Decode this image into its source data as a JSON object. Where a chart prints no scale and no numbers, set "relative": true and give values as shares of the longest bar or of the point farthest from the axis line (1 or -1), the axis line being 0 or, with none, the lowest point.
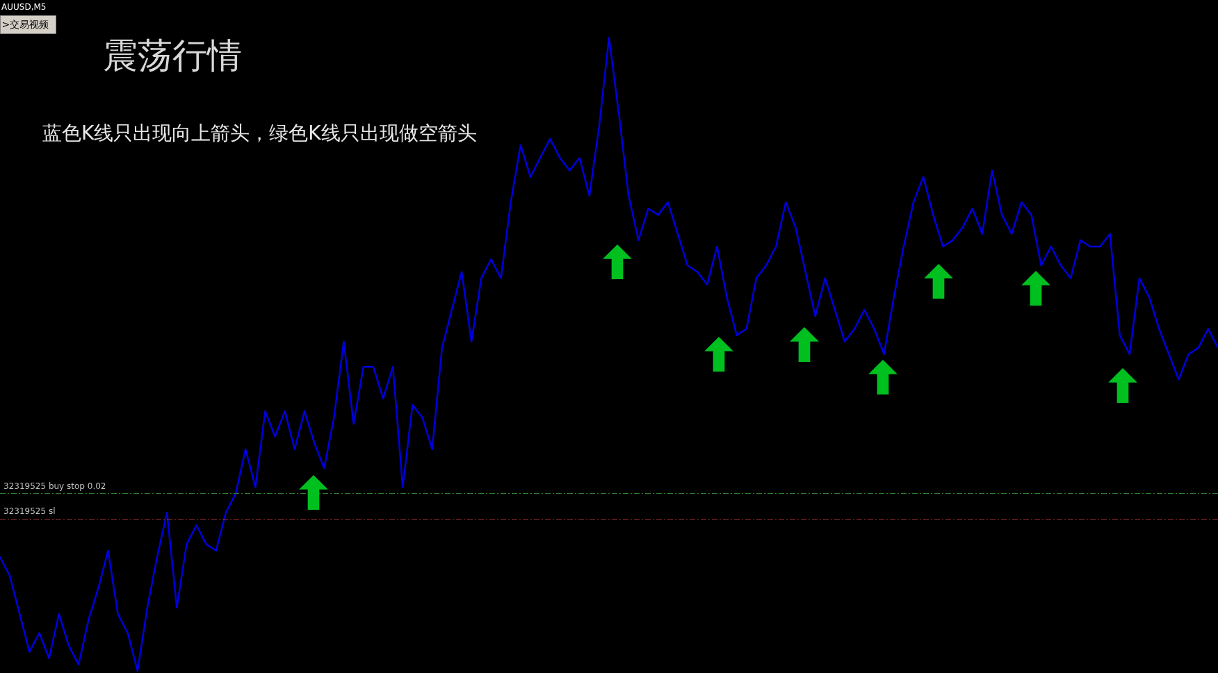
{
  "chart_data": {
    "type": "line",
    "relative": true,
    "title": "震荡行情",
    "subtitle": "蓝色K线只出现向上箭头，绿色K线只出现做空箭头",
    "annotations": [
      "AUUSD,M5",
      ">交易视频"
    ],
    "categories": [
      null,
      null,
      null,
      null,
      null,
      null,
      null,
      null,
      null,
      null,
      null,
      null,
      null,
      null,
      null,
      null,
      null,
      null,
      null,
      null,
      null,
      null,
      null,
      null,
      null,
      null,
      null,
      null,
      null,
      null,
      null,
      null,
      null,
      null,
      null,
      null,
      null,
      null,
      null,
      null,
      null,
      null,
      null,
      null,
      null,
      null,
      null,
      null,
      null,
      null,
      null,
      null,
      null,
      null,
      null,
      null,
      null,
      null,
      null,
      null,
      null,
      null,
      null,
      null,
      null,
      null,
      null,
      null,
      null,
      null,
      null,
      null,
      null,
      null,
      null,
      null,
      null,
      null,
      null,
      null,
      null,
      null,
      null,
      null,
      null,
      null,
      null,
      null,
      null,
      null,
      null,
      null,
      null,
      null,
      null,
      null,
      null,
      null,
      null,
      null,
      null,
      null,
      null,
      null,
      null,
      null,
      null,
      null,
      null,
      null,
      null,
      null,
      null,
      null,
      null,
      null,
      null,
      null,
      null,
      null,
      null,
      null,
      null,
      null,
      null
    ],
    "series": [
      {
        "color": "#0000dd",
        "values": [
          0.18,
          0.15,
          0.09,
          0.03,
          0.06,
          0.02,
          0.09,
          0.04,
          0.01,
          0.08,
          0.13,
          0.19,
          0.09,
          0.06,
          0,
          0.1,
          0.18,
          0.25,
          0.1,
          0.2,
          0.23,
          0.2,
          0.19,
          0.25,
          0.28,
          0.35,
          0.29,
          0.41,
          0.37,
          0.41,
          0.35,
          0.41,
          0.36,
          0.32,
          0.4,
          0.52,
          0.39,
          0.48,
          0.48,
          0.43,
          0.48,
          0.29,
          0.42,
          0.4,
          0.35,
          0.51,
          0.57,
          0.63,
          0.52,
          0.62,
          0.65,
          0.62,
          0.74,
          0.83,
          0.78,
          0.81,
          0.84,
          0.81,
          0.79,
          0.81,
          0.75,
          0.86,
          1,
          0.88,
          0.75,
          0.68,
          0.73,
          0.72,
          0.74,
          0.69,
          0.64,
          0.63,
          0.61,
          0.67,
          0.59,
          0.53,
          0.54,
          0.62,
          0.64,
          0.67,
          0.74,
          0.7,
          0.63,
          0.56,
          0.62,
          0.57,
          0.52,
          0.54,
          0.57,
          0.54,
          0.5,
          0.59,
          0.67,
          0.74,
          0.78,
          0.72,
          0.67,
          0.68,
          0.7,
          0.73,
          0.69,
          0.79,
          0.72,
          0.69,
          0.74,
          0.72,
          0.64,
          0.67,
          0.64,
          0.62,
          0.68,
          0.67,
          0.67,
          0.69,
          0.53,
          0.5,
          0.62,
          0.59,
          0.54,
          0.5,
          0.46,
          0.5,
          0.51,
          0.54,
          0.51
        ]
      }
    ],
    "ref_lines": [
      {
        "axis": "y",
        "value": 0.28,
        "label": "32319525 buy stop 0.02",
        "color": "#2e7d32",
        "line_style": "dashed"
      },
      {
        "axis": "y",
        "value": 0.24,
        "label": "32319525 sl",
        "color": "#a03030",
        "line_style": "dashed"
      }
    ]
  }
}
